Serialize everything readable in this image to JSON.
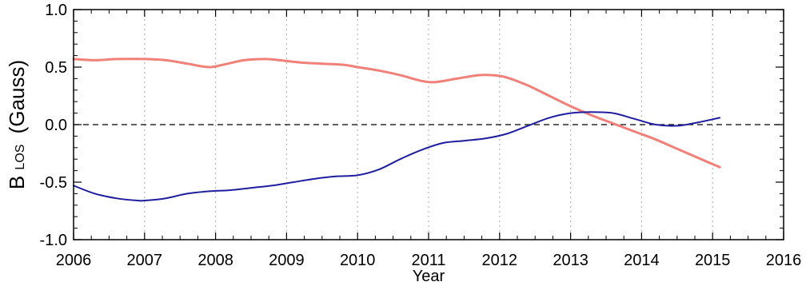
{
  "chart_data": {
    "type": "line",
    "title": "",
    "xlabel": "Year",
    "ylabel_main": "B",
    "ylabel_sub": "LOS",
    "ylabel_unit": "(Gauss)",
    "xlim": [
      2006,
      2016
    ],
    "ylim": [
      -1.0,
      1.0
    ],
    "xticks": [
      2006,
      2007,
      2008,
      2009,
      2010,
      2011,
      2012,
      2013,
      2014,
      2015,
      2016
    ],
    "xtick_labels": [
      "2006",
      "2007",
      "2008",
      "2009",
      "2010",
      "2011",
      "2012",
      "2013",
      "2014",
      "2015",
      "2016"
    ],
    "yticks": [
      -1.0,
      -0.5,
      0.0,
      0.5,
      1.0
    ],
    "ytick_labels": [
      "-1.0",
      "-0.5",
      "0.0",
      "0.5",
      "1.0"
    ],
    "vertical_grid": "dotted",
    "zero_line": "dashed",
    "legend": "none",
    "series": [
      {
        "color": "#f08078",
        "x": [
          2006.0,
          2006.3,
          2006.6,
          2007.0,
          2007.3,
          2007.6,
          2007.9,
          2008.1,
          2008.4,
          2008.7,
          2008.9,
          2009.2,
          2009.5,
          2009.8,
          2010.0,
          2010.3,
          2010.6,
          2010.9,
          2011.1,
          2011.4,
          2011.7,
          2011.9,
          2012.1,
          2012.4,
          2012.7,
          2013.0,
          2013.3,
          2013.6,
          2013.9,
          2014.2,
          2014.5,
          2014.8,
          2015.1
        ],
        "y": [
          0.57,
          0.56,
          0.57,
          0.57,
          0.56,
          0.53,
          0.5,
          0.52,
          0.56,
          0.57,
          0.56,
          0.54,
          0.53,
          0.52,
          0.5,
          0.47,
          0.43,
          0.38,
          0.37,
          0.4,
          0.43,
          0.43,
          0.41,
          0.34,
          0.25,
          0.16,
          0.08,
          0.01,
          -0.06,
          -0.13,
          -0.21,
          -0.29,
          -0.37
        ]
      },
      {
        "color": "#1e1ea0",
        "x": [
          2006.0,
          2006.3,
          2006.6,
          2006.9,
          2007.0,
          2007.3,
          2007.6,
          2007.9,
          2008.2,
          2008.5,
          2008.8,
          2009.1,
          2009.4,
          2009.7,
          2010.0,
          2010.3,
          2010.6,
          2010.9,
          2011.2,
          2011.5,
          2011.8,
          2012.1,
          2012.4,
          2012.7,
          2013.0,
          2013.3,
          2013.6,
          2013.9,
          2014.2,
          2014.5,
          2014.8,
          2015.1
        ],
        "y": [
          -0.53,
          -0.6,
          -0.64,
          -0.66,
          -0.66,
          -0.64,
          -0.6,
          -0.58,
          -0.57,
          -0.55,
          -0.53,
          -0.5,
          -0.47,
          -0.45,
          -0.44,
          -0.39,
          -0.3,
          -0.22,
          -0.16,
          -0.14,
          -0.12,
          -0.08,
          -0.01,
          0.06,
          0.1,
          0.11,
          0.1,
          0.05,
          0.0,
          -0.01,
          0.02,
          0.06
        ]
      }
    ]
  }
}
